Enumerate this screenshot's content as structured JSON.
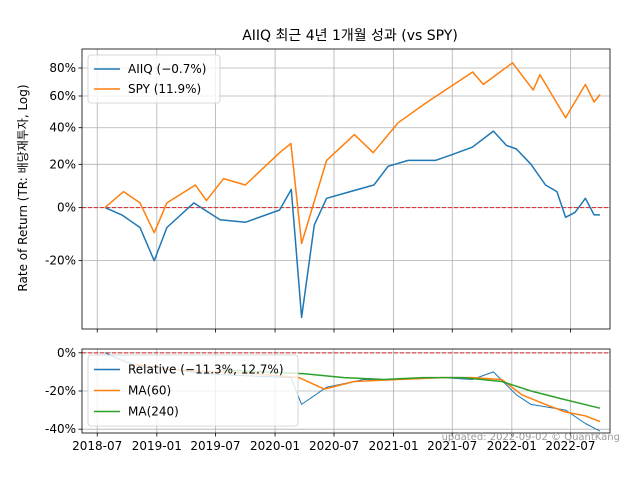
{
  "chart_data": [
    {
      "type": "line",
      "title": "AIIQ 최근 4년 1개월 성과 (vs SPY)",
      "ylabel": "Rate of Return (TR: 배당재투자, Log)",
      "yscale": "log(1 + r)",
      "ylim": [
        -0.4,
        0.95
      ],
      "yticks": [
        -0.2,
        0.0,
        0.2,
        0.4,
        0.6,
        0.8
      ],
      "ytick_labels": [
        "-20%",
        "0%",
        "20%",
        "40%",
        "60%",
        "80%"
      ],
      "xlim": [
        "2018-05-15",
        "2022-10-31"
      ],
      "grid": true,
      "legend_position": "top-left",
      "zero_line_color": "#d62728",
      "series": [
        {
          "name": "AIIQ (−0.7%)",
          "color": "#1f77b4",
          "x": [
            "2018-07-25",
            "2018-09-15",
            "2018-11-10",
            "2018-12-24",
            "2019-02-01",
            "2019-04-25",
            "2019-07-15",
            "2019-10-01",
            "2020-01-15",
            "2020-02-20",
            "2020-03-23",
            "2020-05-01",
            "2020-06-08",
            "2020-08-20",
            "2020-11-01",
            "2020-12-15",
            "2021-02-15",
            "2021-05-10",
            "2021-07-01",
            "2021-09-01",
            "2021-11-05",
            "2021-12-15",
            "2022-01-15",
            "2022-03-01",
            "2022-04-15",
            "2022-05-20",
            "2022-06-16",
            "2022-07-15",
            "2022-08-16",
            "2022-09-12",
            "2022-09-30"
          ],
          "values": [
            0.0,
            -0.03,
            -0.08,
            -0.2,
            -0.08,
            0.02,
            -0.05,
            -0.06,
            -0.01,
            0.08,
            -0.37,
            -0.07,
            0.04,
            0.07,
            0.1,
            0.19,
            0.22,
            0.22,
            0.25,
            0.29,
            0.38,
            0.3,
            0.28,
            0.2,
            0.1,
            0.07,
            -0.04,
            -0.02,
            0.04,
            -0.03,
            -0.03
          ]
        },
        {
          "name": "SPY (11.9%)",
          "color": "#ff7f0e",
          "x": [
            "2018-07-25",
            "2018-09-20",
            "2018-11-10",
            "2018-12-24",
            "2019-02-01",
            "2019-04-30",
            "2019-06-03",
            "2019-07-26",
            "2019-10-01",
            "2020-01-15",
            "2020-02-19",
            "2020-03-23",
            "2020-06-08",
            "2020-09-02",
            "2020-10-30",
            "2021-01-15",
            "2021-04-15",
            "2021-09-02",
            "2021-10-05",
            "2022-01-03",
            "2022-03-08",
            "2022-03-29",
            "2022-06-16",
            "2022-08-16",
            "2022-09-12",
            "2022-09-30"
          ],
          "values": [
            0.0,
            0.07,
            0.02,
            -0.1,
            0.02,
            0.1,
            0.03,
            0.13,
            0.1,
            0.26,
            0.31,
            -0.14,
            0.22,
            0.36,
            0.26,
            0.43,
            0.56,
            0.77,
            0.68,
            0.84,
            0.64,
            0.75,
            0.46,
            0.68,
            0.56,
            0.61
          ]
        }
      ]
    },
    {
      "type": "line",
      "ylim": [
        -0.42,
        0.02
      ],
      "yticks": [
        -0.4,
        -0.2,
        0.0
      ],
      "ytick_labels": [
        "-40%",
        "-20%",
        "0%"
      ],
      "xlim": [
        "2018-05-15",
        "2022-10-31"
      ],
      "xtick_labels": [
        "2018-07",
        "2019-01",
        "2019-07",
        "2020-01",
        "2020-07",
        "2021-01",
        "2021-07",
        "2022-01",
        "2022-07"
      ],
      "grid": true,
      "legend_position": "top-left",
      "zero_line_color": "#d62728",
      "series": [
        {
          "name": "Relative (−11.3%, 12.7%)",
          "color": "#1f77b4",
          "x": [
            "2018-07-25",
            "2018-10-01",
            "2018-12-24",
            "2019-03-01",
            "2019-06-01",
            "2019-10-01",
            "2020-02-19",
            "2020-03-23",
            "2020-06-08",
            "2020-10-01",
            "2021-01-15",
            "2021-06-01",
            "2021-09-01",
            "2021-11-05",
            "2022-01-15",
            "2022-03-01",
            "2022-06-16",
            "2022-08-16",
            "2022-09-30"
          ],
          "values": [
            0.0,
            -0.05,
            -0.09,
            -0.09,
            -0.11,
            -0.12,
            -0.13,
            -0.27,
            -0.18,
            -0.14,
            -0.14,
            -0.13,
            -0.14,
            -0.1,
            -0.22,
            -0.27,
            -0.3,
            -0.37,
            -0.41
          ]
        },
        {
          "name": "MA(60)",
          "color": "#ff7f0e",
          "x": [
            "2018-10-20",
            "2019-03-01",
            "2019-07-01",
            "2019-11-01",
            "2020-03-15",
            "2020-06-01",
            "2020-09-01",
            "2021-01-15",
            "2021-06-01",
            "2021-09-01",
            "2021-12-01",
            "2022-02-01",
            "2022-04-15",
            "2022-06-15",
            "2022-08-15",
            "2022-09-30"
          ],
          "values": [
            -0.06,
            -0.09,
            -0.1,
            -0.11,
            -0.13,
            -0.19,
            -0.15,
            -0.14,
            -0.13,
            -0.13,
            -0.14,
            -0.22,
            -0.27,
            -0.31,
            -0.33,
            -0.36
          ]
        },
        {
          "name": "MA(240)",
          "color": "#2ca02c",
          "x": [
            "2019-07-20",
            "2019-12-01",
            "2020-04-01",
            "2020-08-01",
            "2020-12-01",
            "2021-04-01",
            "2021-08-01",
            "2021-12-01",
            "2022-03-01",
            "2022-06-01",
            "2022-09-30"
          ],
          "values": [
            -0.09,
            -0.1,
            -0.11,
            -0.13,
            -0.14,
            -0.13,
            -0.13,
            -0.15,
            -0.2,
            -0.24,
            -0.29
          ]
        }
      ]
    }
  ],
  "watermark": "updated: 2022-09-02 © QuantKang"
}
